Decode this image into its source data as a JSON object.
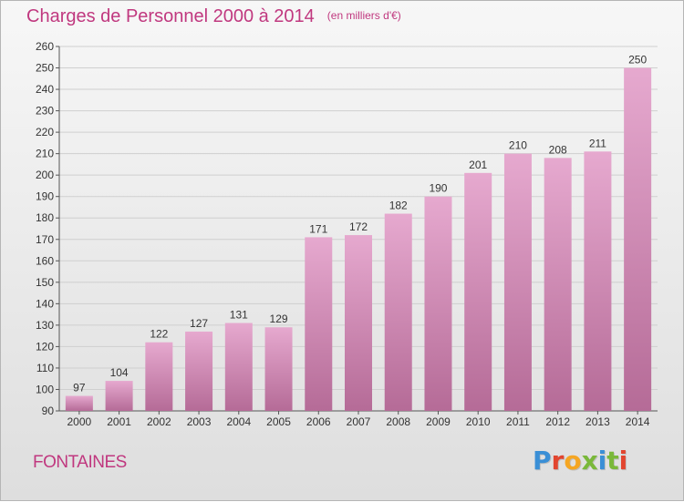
{
  "header": {
    "title": "Charges de Personnel 2000 à 2014",
    "subtitle": "(en milliers d'€)"
  },
  "footer": {
    "commune": "FONTAINES",
    "logo_text": "Proxiti"
  },
  "colors": {
    "title": "#c0387f",
    "bar_top": "#e6a9cf",
    "bar_bottom": "#b56b97",
    "logo_letters": [
      "#3a8fd6",
      "#e2452f",
      "#f5a623",
      "#7ab83a",
      "#3a8fd6",
      "#7ab83a",
      "#e2452f"
    ]
  },
  "chart_data": {
    "type": "bar",
    "title": "Charges de Personnel 2000 à 2014",
    "subtitle": "(en milliers d'€)",
    "categories": [
      "2000",
      "2001",
      "2002",
      "2003",
      "2004",
      "2005",
      "2006",
      "2007",
      "2008",
      "2009",
      "2010",
      "2011",
      "2012",
      "2013",
      "2014"
    ],
    "values": [
      97,
      104,
      122,
      127,
      131,
      129,
      171,
      172,
      182,
      190,
      201,
      210,
      208,
      211,
      250
    ],
    "ylim": [
      90,
      260
    ],
    "yticks": [
      90,
      100,
      110,
      120,
      130,
      140,
      150,
      160,
      170,
      180,
      190,
      200,
      210,
      220,
      230,
      240,
      250,
      260
    ],
    "grid": true,
    "data_labels": true,
    "legend": false
  }
}
